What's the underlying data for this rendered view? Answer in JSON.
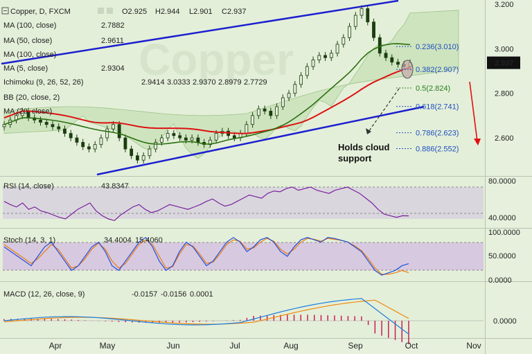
{
  "header": {
    "symbol": "Copper, D, FXCM",
    "open": "O2.925",
    "high": "H2.944",
    "low": "L2.901",
    "close": "C2.937"
  },
  "overlays": [
    {
      "label": "MA (100, close)",
      "value": "2.7882",
      "color": "#cc0000"
    },
    {
      "label": "MA (50, close)",
      "value": "2.9611",
      "color": "#2a6e0f"
    },
    {
      "label": "MA (100, close)",
      "value": "",
      "color": "#cccccc"
    },
    {
      "label": "MA (5, close)",
      "value": "2.9304",
      "color": "#2a6e0f"
    },
    {
      "label": "Ichimoku (9, 26, 52, 26)",
      "values": [
        "2.9414",
        "3.0333",
        "2.9370",
        "2.8979",
        "2.7729"
      ],
      "colors": [
        "#1f4fbf",
        "#b01010",
        "#2a6e0f",
        "#2a6e0f",
        "#b01010"
      ]
    },
    {
      "label": "BB (20, close, 2)",
      "value": "",
      "color": "#cccccc"
    },
    {
      "label": "MA (20, close)",
      "value": "",
      "color": "#cccccc"
    }
  ],
  "price_axis": {
    "ticks": [
      "3.200",
      "3.000",
      "2.800",
      "2.600"
    ],
    "last": "2.937"
  },
  "fib_levels": [
    {
      "label": "0.236(3.010)",
      "price": 3.01,
      "color": "#1f4fbf"
    },
    {
      "label": "0.382(2.907)",
      "price": 2.907,
      "color": "#1f4fbf"
    },
    {
      "label": "0.5(2.824)",
      "price": 2.824,
      "color": "#2a7e1f"
    },
    {
      "label": "0.618(2.741)",
      "price": 2.741,
      "color": "#1f4fbf"
    },
    {
      "label": "0.786(2.623)",
      "price": 2.623,
      "color": "#1f4fbf"
    },
    {
      "label": "0.886(2.552)",
      "price": 2.552,
      "color": "#1f4fbf"
    }
  ],
  "annotation": {
    "line1": "Holds cloud",
    "line2": "support"
  },
  "months": [
    "Apr",
    "May",
    "Jun",
    "Jul",
    "Aug",
    "Sep",
    "Oct",
    "Nov"
  ],
  "rsi": {
    "label": "RSI (14, close)",
    "value": "43.8347",
    "ticks": [
      "80.0000",
      "40.0000"
    ]
  },
  "stoch": {
    "label": "Stoch (14, 3, 1)",
    "k": "34.4004",
    "d": "15.4060",
    "ticks": [
      "100.0000",
      "50.0000",
      "0.0000"
    ]
  },
  "macd": {
    "label": "MACD (12, 26, close, 9)",
    "values": [
      "-0.0157",
      "-0.0156",
      "0.0001"
    ],
    "colors": [
      "#cc0000",
      "#1f4fbf",
      "#ff8800"
    ],
    "ticks": [
      "0.0000"
    ]
  },
  "chart_data": {
    "type": "candlestick",
    "instrument": "Copper",
    "timeframe": "D",
    "ylim": [
      2.45,
      3.22
    ],
    "closes_approx": [
      2.66,
      2.68,
      2.7,
      2.72,
      2.69,
      2.68,
      2.67,
      2.66,
      2.65,
      2.64,
      2.62,
      2.6,
      2.58,
      2.56,
      2.55,
      2.57,
      2.6,
      2.64,
      2.66,
      2.6,
      2.55,
      2.52,
      2.5,
      2.52,
      2.55,
      2.58,
      2.6,
      2.62,
      2.61,
      2.6,
      2.59,
      2.6,
      2.58,
      2.57,
      2.59,
      2.62,
      2.63,
      2.61,
      2.6,
      2.62,
      2.66,
      2.7,
      2.73,
      2.72,
      2.7,
      2.74,
      2.78,
      2.8,
      2.84,
      2.88,
      2.92,
      2.95,
      2.97,
      2.96,
      2.98,
      3.02,
      3.05,
      3.1,
      3.15,
      3.18,
      3.12,
      3.05,
      2.98,
      2.96,
      2.94,
      2.93,
      2.92,
      2.937
    ],
    "ma100": {
      "name": "MA (100, close)",
      "end": 2.7882
    },
    "ma50": {
      "name": "MA (50, close)",
      "end": 2.9611
    },
    "rsi_values": [
      62,
      58,
      55,
      60,
      52,
      55,
      50,
      48,
      45,
      42,
      40,
      46,
      52,
      56,
      60,
      50,
      44,
      40,
      38,
      45,
      50,
      55,
      58,
      52,
      48,
      50,
      54,
      58,
      56,
      54,
      52,
      55,
      58,
      62,
      65,
      60,
      56,
      58,
      62,
      66,
      70,
      68,
      66,
      72,
      75,
      74,
      78,
      80,
      76,
      78,
      80,
      76,
      74,
      72,
      76,
      78,
      80,
      76,
      72,
      66,
      60,
      52,
      46,
      44,
      42,
      44,
      43.83
    ],
    "stoch_k": [
      70,
      60,
      50,
      40,
      30,
      50,
      70,
      80,
      60,
      40,
      20,
      30,
      50,
      70,
      80,
      60,
      30,
      20,
      40,
      60,
      80,
      90,
      70,
      40,
      20,
      30,
      60,
      80,
      70,
      50,
      30,
      40,
      60,
      80,
      90,
      80,
      60,
      70,
      85,
      90,
      80,
      60,
      50,
      70,
      85,
      90,
      85,
      80,
      90,
      88,
      84,
      80,
      70,
      60,
      40,
      20,
      10,
      15,
      20,
      30,
      34.4004
    ],
    "stoch_d": [
      75,
      65,
      55,
      45,
      35,
      45,
      60,
      75,
      65,
      45,
      25,
      30,
      45,
      65,
      78,
      65,
      40,
      25,
      35,
      55,
      75,
      85,
      75,
      50,
      25,
      28,
      55,
      75,
      72,
      55,
      35,
      38,
      55,
      75,
      85,
      82,
      65,
      68,
      80,
      88,
      82,
      65,
      55,
      65,
      80,
      88,
      86,
      82,
      88,
      86,
      84,
      80,
      72,
      62,
      45,
      25,
      12,
      12,
      15,
      20,
      15.406
    ],
    "macd_value": -0.0157,
    "macd_signal": -0.0156,
    "macd_hist": 0.0001
  }
}
